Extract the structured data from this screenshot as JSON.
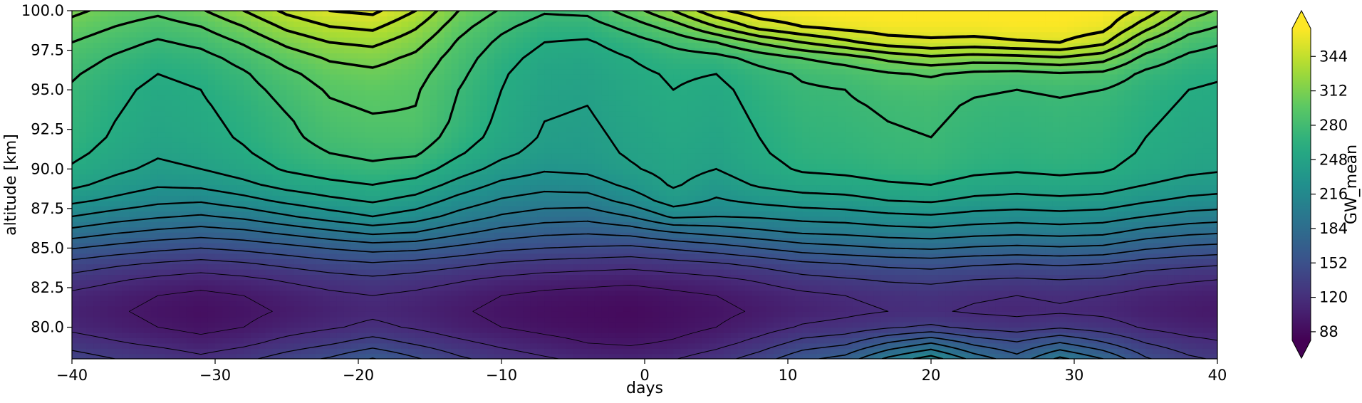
{
  "chart_data": {
    "type": "heatmap",
    "xlabel": "days",
    "ylabel": "altitude [km]",
    "xlim": [
      -40,
      40
    ],
    "ylim": [
      78,
      100
    ],
    "x_ticks": [
      -40,
      -30,
      -20,
      -10,
      0,
      10,
      20,
      30,
      40
    ],
    "x_tick_labels": [
      "−40",
      "−30",
      "−20",
      "−10",
      "0",
      "10",
      "20",
      "30",
      "40"
    ],
    "y_ticks": [
      80.0,
      82.5,
      85.0,
      87.5,
      90.0,
      92.5,
      95.0,
      97.5,
      100.0
    ],
    "y_tick_labels": [
      "80.0",
      "82.5",
      "85.0",
      "87.5",
      "90.0",
      "92.5",
      "95.0",
      "97.5",
      "100.0"
    ],
    "colorbar": {
      "label": "GW_mean",
      "colormap": "viridis",
      "range": [
        80,
        370
      ],
      "ticks": [
        88,
        120,
        152,
        184,
        216,
        248,
        280,
        312,
        344
      ],
      "tick_labels": [
        "88",
        "120",
        "152",
        "184",
        "216",
        "248",
        "280",
        "312",
        "344"
      ],
      "extend": "both"
    },
    "contours": {
      "color": "#000000",
      "overlay": true
    },
    "x": [
      -40,
      -37,
      -34,
      -31,
      -28,
      -25,
      -22,
      -19,
      -16,
      -13,
      -10,
      -7,
      -4,
      -1,
      2,
      5,
      8,
      11,
      14,
      17,
      20,
      23,
      26,
      29,
      32,
      35,
      38,
      40
    ],
    "y": [
      78,
      79,
      80,
      81,
      82,
      83,
      84,
      85,
      86,
      87,
      88,
      89,
      90,
      91,
      92,
      93,
      94,
      95,
      96,
      97,
      98,
      99,
      100
    ],
    "z": [
      [
        140,
        132,
        128,
        120,
        128,
        140,
        150,
        165,
        150,
        135,
        125,
        118,
        112,
        110,
        115,
        125,
        140,
        160,
        170,
        200,
        220,
        190,
        170,
        200,
        180,
        150,
        135,
        130
      ],
      [
        125,
        118,
        112,
        106,
        112,
        122,
        130,
        140,
        130,
        120,
        112,
        106,
        100,
        98,
        102,
        110,
        122,
        138,
        145,
        165,
        180,
        160,
        150,
        165,
        150,
        132,
        122,
        118
      ],
      [
        112,
        106,
        100,
        95,
        100,
        108,
        114,
        120,
        114,
        106,
        100,
        95,
        92,
        90,
        94,
        100,
        108,
        118,
        122,
        130,
        135,
        128,
        124,
        130,
        124,
        114,
        108,
        106
      ],
      [
        108,
        102,
        96,
        92,
        96,
        102,
        108,
        112,
        108,
        102,
        96,
        92,
        90,
        88,
        92,
        96,
        102,
        108,
        112,
        116,
        118,
        114,
        112,
        114,
        112,
        106,
        102,
        100
      ],
      [
        112,
        106,
        100,
        96,
        100,
        106,
        112,
        116,
        112,
        106,
        100,
        96,
        94,
        92,
        96,
        100,
        106,
        112,
        116,
        120,
        122,
        118,
        116,
        118,
        116,
        110,
        106,
        104
      ],
      [
        125,
        118,
        112,
        108,
        112,
        118,
        124,
        128,
        124,
        118,
        112,
        108,
        106,
        104,
        108,
        112,
        118,
        126,
        130,
        134,
        136,
        132,
        130,
        132,
        130,
        122,
        118,
        116
      ],
      [
        142,
        135,
        130,
        126,
        130,
        136,
        142,
        146,
        142,
        136,
        130,
        126,
        124,
        122,
        126,
        130,
        136,
        144,
        148,
        152,
        154,
        150,
        148,
        150,
        148,
        140,
        136,
        134
      ],
      [
        165,
        158,
        152,
        148,
        152,
        158,
        165,
        170,
        168,
        160,
        152,
        148,
        146,
        144,
        150,
        156,
        164,
        172,
        176,
        180,
        182,
        178,
        176,
        178,
        176,
        166,
        160,
        158
      ],
      [
        190,
        182,
        176,
        172,
        176,
        184,
        192,
        200,
        196,
        184,
        174,
        168,
        166,
        170,
        180,
        186,
        192,
        198,
        200,
        204,
        206,
        202,
        200,
        202,
        200,
        190,
        184,
        182
      ],
      [
        212,
        204,
        198,
        194,
        200,
        210,
        220,
        228,
        220,
        206,
        194,
        188,
        186,
        196,
        215,
        212,
        214,
        218,
        220,
        224,
        226,
        222,
        220,
        222,
        220,
        212,
        206,
        204
      ],
      [
        232,
        224,
        216,
        214,
        222,
        232,
        240,
        246,
        238,
        222,
        210,
        204,
        204,
        218,
        236,
        226,
        232,
        236,
        238,
        244,
        246,
        240,
        238,
        240,
        238,
        230,
        224,
        222
      ],
      [
        248,
        238,
        230,
        232,
        240,
        250,
        256,
        260,
        254,
        238,
        224,
        218,
        220,
        232,
        246,
        236,
        246,
        252,
        254,
        258,
        260,
        254,
        252,
        254,
        252,
        244,
        238,
        236
      ],
      [
        258,
        248,
        240,
        244,
        252,
        262,
        268,
        272,
        268,
        252,
        238,
        230,
        232,
        242,
        250,
        244,
        254,
        262,
        264,
        268,
        270,
        264,
        262,
        264,
        262,
        254,
        248,
        246
      ],
      [
        264,
        254,
        246,
        250,
        258,
        268,
        276,
        280,
        278,
        262,
        248,
        238,
        238,
        246,
        252,
        248,
        258,
        266,
        268,
        272,
        274,
        268,
        266,
        268,
        266,
        258,
        252,
        250
      ],
      [
        268,
        258,
        250,
        254,
        262,
        272,
        282,
        286,
        286,
        268,
        254,
        242,
        240,
        248,
        254,
        250,
        260,
        268,
        270,
        274,
        276,
        270,
        268,
        270,
        268,
        260,
        254,
        252
      ],
      [
        270,
        260,
        252,
        256,
        264,
        274,
        286,
        290,
        290,
        272,
        256,
        244,
        242,
        250,
        256,
        252,
        262,
        270,
        272,
        276,
        278,
        272,
        270,
        272,
        270,
        262,
        256,
        254
      ],
      [
        272,
        262,
        254,
        258,
        266,
        278,
        290,
        294,
        292,
        274,
        258,
        246,
        244,
        252,
        258,
        254,
        264,
        272,
        274,
        278,
        280,
        274,
        272,
        274,
        272,
        264,
        258,
        256
      ],
      [
        274,
        264,
        256,
        260,
        270,
        282,
        294,
        298,
        294,
        276,
        260,
        248,
        246,
        254,
        260,
        256,
        266,
        274,
        276,
        282,
        284,
        278,
        276,
        278,
        276,
        266,
        260,
        258
      ],
      [
        278,
        268,
        260,
        264,
        274,
        288,
        300,
        304,
        298,
        280,
        262,
        250,
        248,
        256,
        262,
        260,
        270,
        278,
        282,
        290,
        294,
        288,
        286,
        290,
        288,
        272,
        264,
        262
      ],
      [
        284,
        274,
        266,
        270,
        282,
        298,
        310,
        314,
        304,
        284,
        266,
        254,
        252,
        260,
        268,
        270,
        282,
        292,
        300,
        312,
        320,
        316,
        318,
        322,
        314,
        286,
        272,
        268
      ],
      [
        292,
        282,
        274,
        280,
        294,
        312,
        324,
        328,
        314,
        290,
        272,
        260,
        258,
        268,
        280,
        292,
        310,
        324,
        336,
        348,
        352,
        350,
        354,
        356,
        344,
        306,
        284,
        278
      ],
      [
        302,
        292,
        284,
        292,
        308,
        328,
        340,
        344,
        326,
        298,
        280,
        268,
        268,
        282,
        300,
        324,
        346,
        356,
        362,
        366,
        366,
        366,
        368,
        368,
        362,
        330,
        300,
        292
      ],
      [
        312,
        302,
        296,
        306,
        324,
        344,
        356,
        360,
        340,
        308,
        290,
        278,
        280,
        300,
        324,
        352,
        366,
        370,
        372,
        372,
        372,
        372,
        372,
        372,
        370,
        350,
        318,
        306
      ]
    ]
  }
}
